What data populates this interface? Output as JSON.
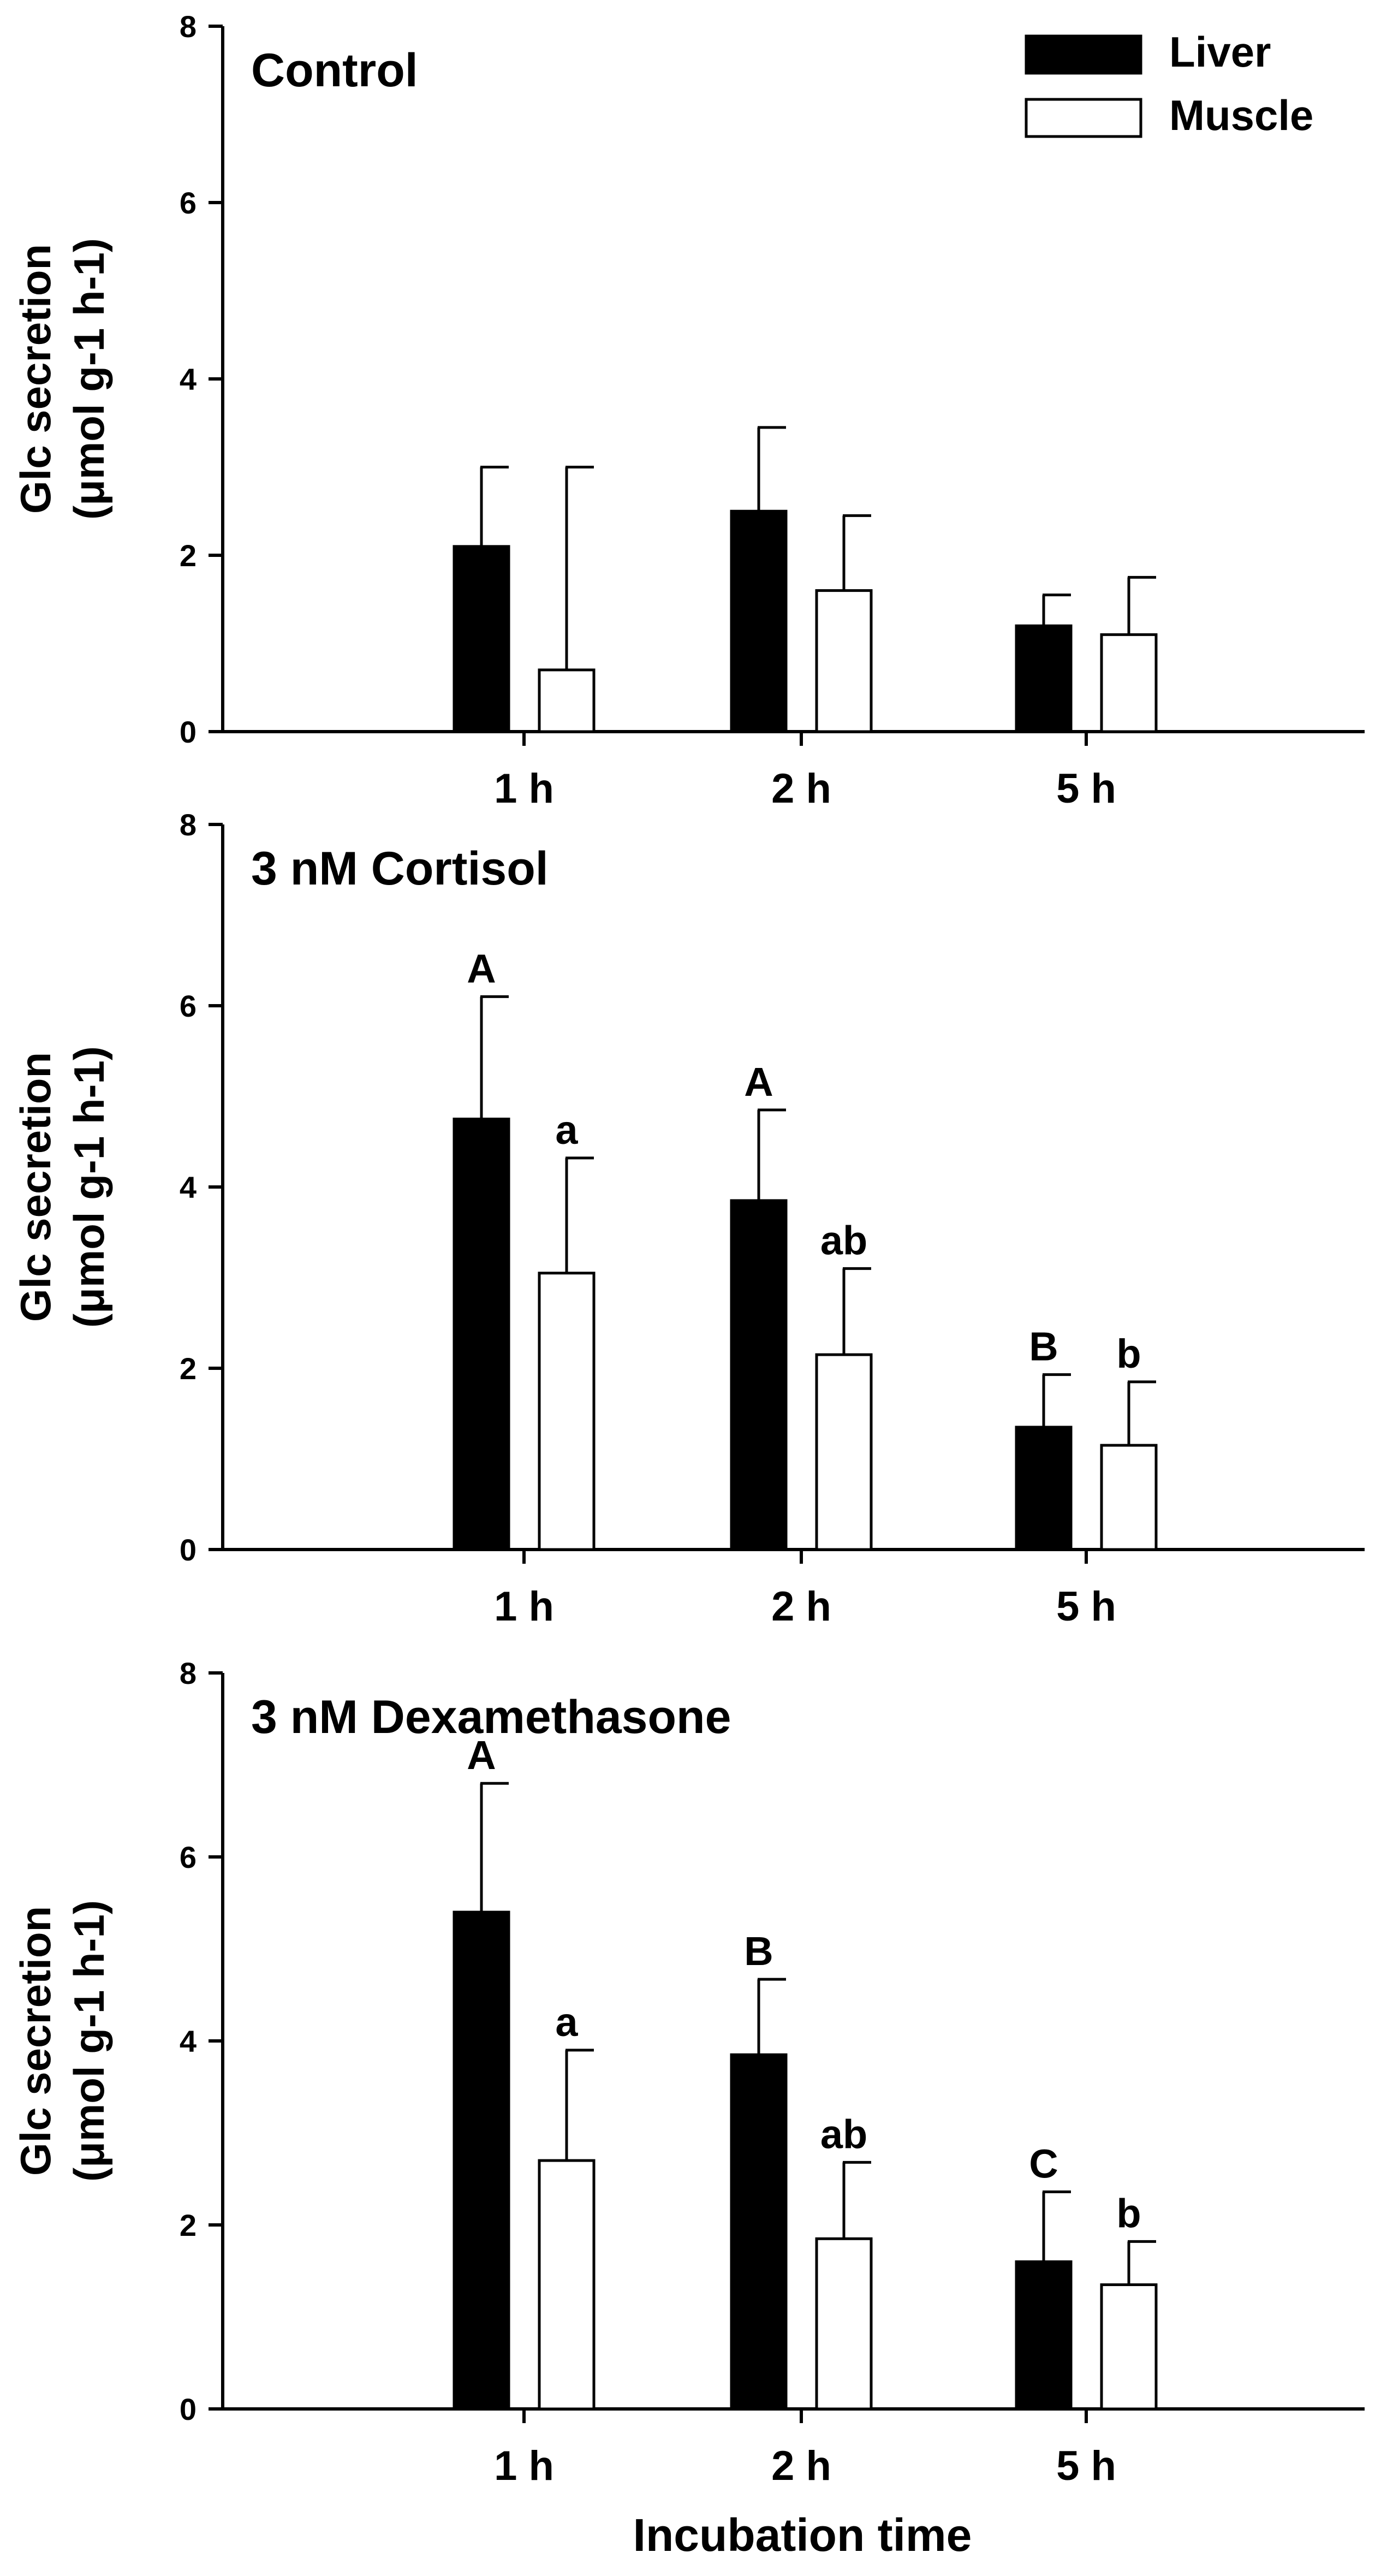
{
  "chart_data": {
    "type": "bar",
    "xlabel": "Incubation time",
    "ylabel_main": "Glc secretion",
    "ylabel_unit": "(μmol g-1 h-1)",
    "ylim": [
      0,
      8
    ],
    "yticks": [
      0,
      2,
      4,
      6,
      8
    ],
    "categories": [
      "1 h",
      "2 h",
      "5 h"
    ],
    "legend": {
      "position": "top-right",
      "entries": [
        {
          "name": "Liver",
          "color": "#000000"
        },
        {
          "name": "Muscle",
          "color": "#ffffff"
        }
      ]
    },
    "panels": [
      {
        "title": "Control",
        "series": [
          {
            "name": "Liver",
            "values": [
              2.1,
              2.5,
              1.2
            ],
            "errors": [
              0.9,
              0.95,
              0.35
            ],
            "labels": [
              "",
              "",
              ""
            ]
          },
          {
            "name": "Muscle",
            "values": [
              0.7,
              1.6,
              1.1
            ],
            "errors": [
              2.3,
              0.85,
              0.65
            ],
            "labels": [
              "",
              "",
              ""
            ]
          }
        ]
      },
      {
        "title": "3 nM Cortisol",
        "series": [
          {
            "name": "Liver",
            "values": [
              4.75,
              3.85,
              1.35
            ],
            "errors": [
              1.35,
              1.0,
              0.58
            ],
            "labels": [
              "A",
              "A",
              "B"
            ]
          },
          {
            "name": "Muscle",
            "values": [
              3.05,
              2.15,
              1.15
            ],
            "errors": [
              1.27,
              0.95,
              0.7
            ],
            "labels": [
              "a",
              "ab",
              "b"
            ]
          }
        ]
      },
      {
        "title": "3 nM Dexamethasone",
        "series": [
          {
            "name": "Liver",
            "values": [
              5.4,
              3.85,
              1.6
            ],
            "errors": [
              1.4,
              0.82,
              0.76
            ],
            "labels": [
              "A",
              "B",
              "C"
            ]
          },
          {
            "name": "Muscle",
            "values": [
              2.7,
              1.85,
              1.35
            ],
            "errors": [
              1.2,
              0.83,
              0.47
            ],
            "labels": [
              "a",
              "ab",
              "b"
            ]
          }
        ]
      }
    ]
  }
}
